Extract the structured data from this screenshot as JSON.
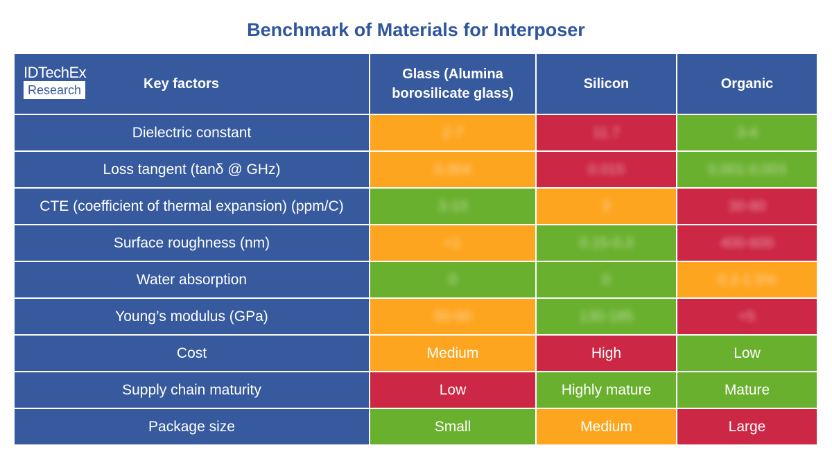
{
  "title": "Benchmark of Materials for Interposer",
  "logo": {
    "line1": "IDTechEx",
    "line2": "Research"
  },
  "colors": {
    "header_blue": "#375a9e",
    "good": "#6ab02f",
    "medium": "#fea520",
    "poor": "#cc2744",
    "title": "#2f559c"
  },
  "chart_data": {
    "type": "table",
    "columns": [
      "Key factors",
      "Glass (Alumina borosilicate glass)",
      "Silicon",
      "Organic"
    ],
    "rows": [
      {
        "factor": "Dielectric constant",
        "cells": [
          {
            "value": "2-7",
            "rating": "medium",
            "blurred": true
          },
          {
            "value": "11.7",
            "rating": "poor",
            "blurred": true
          },
          {
            "value": "3-4",
            "rating": "good",
            "blurred": true
          }
        ]
      },
      {
        "factor": "Loss tangent (tanδ @ GHz)",
        "cells": [
          {
            "value": "0.004",
            "rating": "medium",
            "blurred": true
          },
          {
            "value": "0.015",
            "rating": "poor",
            "blurred": true
          },
          {
            "value": "0.001-0.003",
            "rating": "good",
            "blurred": true
          }
        ]
      },
      {
        "factor": "CTE (coefficient of thermal expansion) (ppm/C)",
        "cells": [
          {
            "value": "3-10",
            "rating": "good",
            "blurred": true
          },
          {
            "value": "3",
            "rating": "medium",
            "blurred": true
          },
          {
            "value": "30-80",
            "rating": "poor",
            "blurred": true
          }
        ]
      },
      {
        "factor": "Surface roughness (nm)",
        "cells": [
          {
            "value": "<1",
            "rating": "medium",
            "blurred": true
          },
          {
            "value": "0.15-0.3",
            "rating": "good",
            "blurred": true
          },
          {
            "value": "400-600",
            "rating": "poor",
            "blurred": true
          }
        ]
      },
      {
        "factor": "Water absorption",
        "cells": [
          {
            "value": "0",
            "rating": "good",
            "blurred": true
          },
          {
            "value": "0",
            "rating": "good",
            "blurred": true
          },
          {
            "value": "0.2-1.5%",
            "rating": "medium",
            "blurred": true
          }
        ]
      },
      {
        "factor": "Young’s modulus (GPa)",
        "cells": [
          {
            "value": "50-90",
            "rating": "medium",
            "blurred": true
          },
          {
            "value": "130-185",
            "rating": "good",
            "blurred": true
          },
          {
            "value": "<5",
            "rating": "poor",
            "blurred": true
          }
        ]
      },
      {
        "factor": "Cost",
        "cells": [
          {
            "value": "Medium",
            "rating": "medium"
          },
          {
            "value": "High",
            "rating": "poor"
          },
          {
            "value": "Low",
            "rating": "good"
          }
        ]
      },
      {
        "factor": "Supply chain maturity",
        "cells": [
          {
            "value": "Low",
            "rating": "poor"
          },
          {
            "value": "Highly mature",
            "rating": "good"
          },
          {
            "value": "Mature",
            "rating": "good"
          }
        ]
      },
      {
        "factor": "Package size",
        "cells": [
          {
            "value": "Small",
            "rating": "good"
          },
          {
            "value": "Medium",
            "rating": "medium"
          },
          {
            "value": "Large",
            "rating": "poor"
          }
        ]
      }
    ]
  }
}
